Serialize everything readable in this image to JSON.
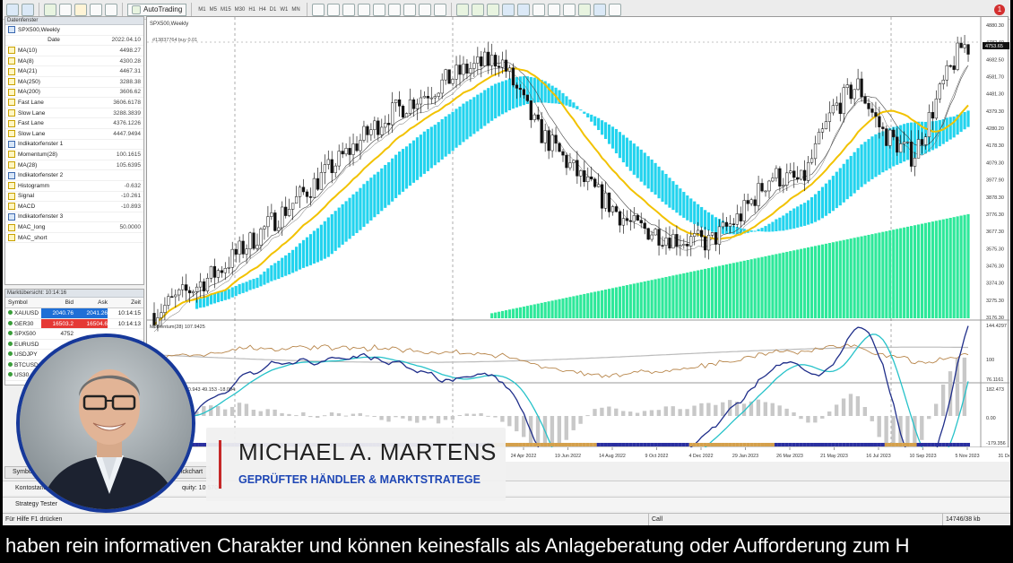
{
  "toolbar": {
    "autotrading_label": "AutoTrading",
    "timeframes": [
      "M1",
      "M5",
      "M15",
      "M30",
      "H1",
      "H4",
      "D1",
      "W1",
      "MN"
    ],
    "alert_count": "1"
  },
  "data_window": {
    "title": "Datenfenster",
    "symbol": "SPX500,Weekly",
    "rows": [
      {
        "label": "Date",
        "value": "2022.04.10",
        "center": true,
        "icon": ""
      },
      {
        "label": "MA(10)",
        "value": "4498.27",
        "icon": "f"
      },
      {
        "label": "MA(8)",
        "value": "4300.28",
        "icon": "f"
      },
      {
        "label": "MA(21)",
        "value": "4467.31",
        "icon": "f"
      },
      {
        "label": "MA(250)",
        "value": "3288.38",
        "icon": "f"
      },
      {
        "label": "MA(200)",
        "value": "3606.62",
        "icon": "f"
      },
      {
        "label": "Fast Lane",
        "value": "3606.6178",
        "icon": "f"
      },
      {
        "label": "Slow Lane",
        "value": "3288.3839",
        "icon": "f"
      },
      {
        "label": "Fast Lane",
        "value": "4376.1226",
        "icon": "f"
      },
      {
        "label": "Slow Lane",
        "value": "4447.9494",
        "icon": "f"
      },
      {
        "label": "Indikatorfenster 1",
        "value": "",
        "icon": "s"
      },
      {
        "label": "Momentum(28)",
        "value": "100.1615",
        "icon": "f"
      },
      {
        "label": "MA(28)",
        "value": "105.6395",
        "icon": "f"
      },
      {
        "label": "Indikatorfenster 2",
        "value": "",
        "icon": "s"
      },
      {
        "label": "Histogramm",
        "value": "-0.632",
        "icon": "f"
      },
      {
        "label": "Signal",
        "value": "-10.261",
        "icon": "f"
      },
      {
        "label": "MACD",
        "value": "-10.893",
        "icon": "f"
      },
      {
        "label": "Indikatorfenster 3",
        "value": "",
        "icon": "s"
      },
      {
        "label": "MAC_long",
        "value": "50.0000",
        "icon": "f"
      },
      {
        "label": "MAC_short",
        "value": "",
        "icon": "f"
      }
    ]
  },
  "market_watch": {
    "title": "Marktübersicht: 10:14:16",
    "columns": [
      "Symbol",
      "Bid",
      "Ask",
      "Zeit"
    ],
    "rows": [
      {
        "symbol": "XAUUSD",
        "bid": "2040.76",
        "ask": "2041.26",
        "time": "10:14:15",
        "color": "#1f6fd6"
      },
      {
        "symbol": "GER30",
        "bid": "16503.2",
        "ask": "16504.6",
        "time": "10:14:13",
        "color": "#e53935"
      },
      {
        "symbol": "SPX500",
        "bid": "4752",
        "ask": "",
        "time": "",
        "color": ""
      },
      {
        "symbol": "EURUSD",
        "bid": "",
        "ask": "",
        "time": "",
        "color": ""
      },
      {
        "symbol": "USDJPY",
        "bid": "",
        "ask": "",
        "time": "",
        "color": ""
      },
      {
        "symbol": "BTCUSD",
        "bid": "",
        "ask": "",
        "time": "",
        "color": ""
      },
      {
        "symbol": "US30",
        "bid": "",
        "ask": "",
        "time": "",
        "color": ""
      }
    ]
  },
  "chart": {
    "title": "SPX500,Weekly",
    "order_line_label": "#13837764 buy 0.01",
    "price_ticks": [
      "4880.30",
      "4782.40",
      "4682.50",
      "4581.70",
      "4481.30",
      "4379.30",
      "4280.20",
      "4178.30",
      "4079.30",
      "3977.90",
      "3878.30",
      "3776.30",
      "3677.30",
      "3575.30",
      "3476.30",
      "3374.30",
      "3275.30",
      "3176.30"
    ],
    "current_price": "4753.65",
    "momentum_label": "Momentum(28) 107.9425",
    "momentum_ticks": [
      "144.4297",
      "100",
      "76.1161"
    ],
    "macd_label": "MACD(12,26,9) 30.943 49.153 -18.094",
    "macd_ticks": [
      "182.473",
      "0.00",
      "-179.356"
    ],
    "date_ticks": [
      "24 Apr 2022",
      "19 Jun 2022",
      "14 Aug 2022",
      "9 Oct 2022",
      "4 Dec 2022",
      "29 Jan 2023",
      "26 Mar 2023",
      "21 May 2023",
      "16 Jul 2023",
      "10 Sep 2023",
      "5 Nov 2023",
      "31 Dec 2023"
    ],
    "colors": {
      "ma_slow": "#f2c200",
      "cloud_fast": "#22d3ee",
      "cloud_slow": "#2ee89a",
      "momentum": "#b8864b",
      "macd_line": "#1f2e8a",
      "macd_signal": "#26c2c9"
    }
  },
  "bottom": {
    "tab_symbol": "Symbo",
    "tab_tick": "ickchart",
    "account_label": "Kontostand",
    "equity_label": "quity: 10 570.2",
    "strategy_label": "Strategy Tester",
    "status_help": "Für Hilfe F1 drücken",
    "status_profile": "Call",
    "status_traffic": "14746/38 kb"
  },
  "presenter": {
    "name": "MICHAEL A. MARTENS",
    "title": "GEPRÜFTER HÄNDLER & MARKTSTRATEGE"
  },
  "ticker_text": "haben rein informativen Charakter und können keinesfalls als Anlageberatung oder Aufforderung zum H"
}
